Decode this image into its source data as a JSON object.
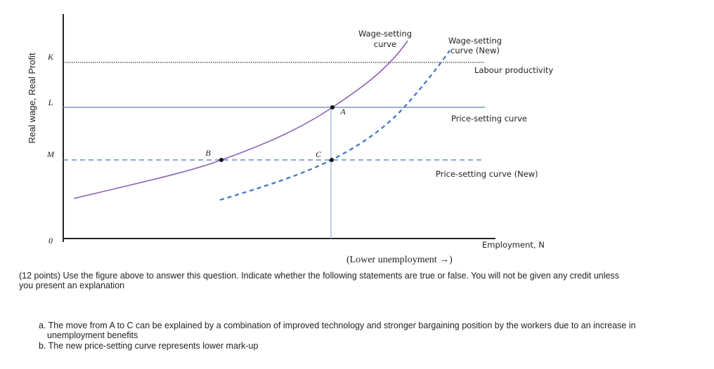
{
  "diagram": {
    "y_axis_title": "Real wage, Real Profit",
    "y_labels": [
      "K",
      "L",
      "M",
      "0"
    ],
    "points": [
      "A",
      "B",
      "C"
    ],
    "wage_setting_curve": [
      "Wage-setting",
      "curve"
    ],
    "wage_setting_curve_new": [
      "Wage-setting",
      "curve (New)"
    ],
    "labour_productivity": "Labour productivity",
    "price_setting_curve": "Price-setting curve",
    "price_setting_curve_new": "Price-setting curve (New)",
    "x_axis_title": "Employment, N",
    "x_axis_note": "(Lower unemployment →)"
  },
  "question": {
    "intro": [
      "(12 points) Use the figure above to answer this question. Indicate whether the following statements are true or false. You will not be given any credit unless",
      "you present an explanation"
    ],
    "item_a": [
      "a. The move from A to C can be explained by a combination of improved technology and stronger bargaining position by the workers due to an increase in",
      "unemployment benefits"
    ],
    "item_b": "b. The new price-setting curve represents lower mark-up"
  }
}
